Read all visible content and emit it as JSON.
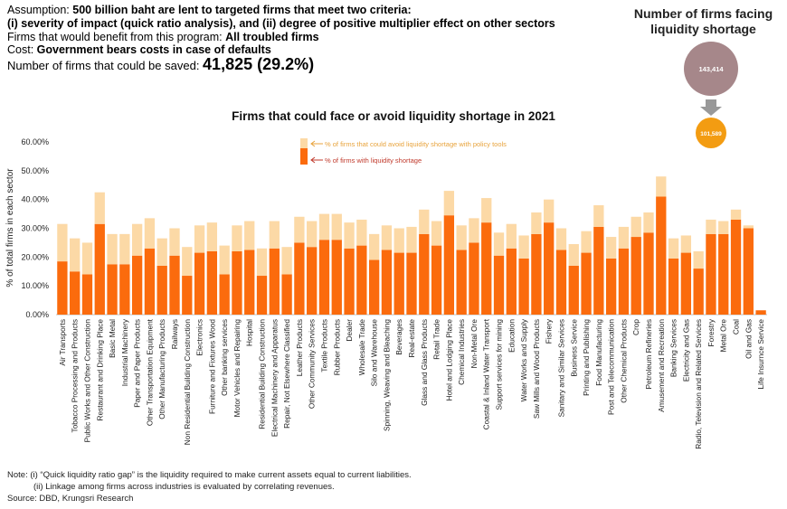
{
  "header": {
    "assumption_label": "Assumption: ",
    "assumption_text": "500 billion baht are lent to targeted firms that meet two criteria:",
    "criteria": "(i) severity of impact (quick ratio analysis), and (ii) degree of positive multiplier effect on other sectors",
    "benefit_label": "Firms that would benefit from this program: ",
    "benefit_value": "All troubled firms",
    "cost_label": "Cost: ",
    "cost_value": "Government bears costs in case of defaults",
    "saved_label": "Number of firms that could be saved: ",
    "saved_value": "41,825 (29.2%)"
  },
  "bubbles": {
    "title": "Number of firms facing liquidity shortage",
    "before_value": "143,414",
    "after_value": "101,589",
    "before_color": "#a6878a",
    "after_color": "#f39c12",
    "arrow_color": "#999999"
  },
  "notes": {
    "note1": "Note:  (i) “Quick liquidity ratio gap” is the liquidity required to make current assets equal to current liabilities.",
    "note2": "(ii) Linkage among firms across industries is evaluated by correlating revenues.",
    "source": "Source: DBD, Krungsri Research"
  },
  "chart_data": {
    "type": "bar",
    "title": "Firms that could face or avoid liquidity shortage in 2021",
    "ylabel": "% of total firms in each sector",
    "xlabel": "",
    "ylim": [
      0,
      60
    ],
    "yticks": [
      "0.00%",
      "10.00%",
      "20.00%",
      "30.00%",
      "40.00%",
      "50.00%",
      "60.00%"
    ],
    "legend_placement": "top-left",
    "colors": {
      "shortage": "#fb6b0d",
      "avoid": "#fcd9a6",
      "avoid_text": "#e8a33c",
      "shortage_text": "#c0392b"
    },
    "categories": [
      "Air Transports",
      "Tobacco Processing and Products",
      "Public Works and Other Construction",
      "Restaurant and Drinking Place",
      "Basic Metal",
      "Industrial Machinery",
      "Paper and Paper Products",
      "Other Transportation Equipment",
      "Other Manufacturing Products",
      "Railways",
      "Non Residential Building Construction",
      "Electronics",
      "Furniture and Fixtures Wood",
      "Other banking services",
      "Motor Vehicles and Repairing",
      "Hospital",
      "Residential Building Construction",
      "Electrical Machinery and Apparatus",
      "Repair, Not Elsewhere Classified",
      "Leather Products",
      "Other Community Services",
      "Textile Products",
      "Rubber Products",
      "Dealer",
      "Wholesale Trade",
      "Silo and Warehouse",
      "Spinning, Weaving and Bleaching",
      "Beverages",
      "Real-estate",
      "Glass and Glass Products",
      "Retail Trade",
      "Hotel and Lodging Place",
      "Chemical Industries",
      "Non-Metal Ore",
      "Coastal & Inland Water Transport",
      "Support services for mining",
      "Education",
      "Water Works and Supply",
      "Saw Mills and Wood Products",
      "Fishery",
      "Sanitary and Similar Services",
      "Business Service",
      "Printing and Publishing",
      "Food Manufacturing",
      "Post and Telecommunication",
      "Other Chemical Products",
      "Crop",
      "Petroleum Refineries",
      "Amusement and Recreation",
      "Banking Services",
      "Electricity and Gas",
      "Radio, Television and Related Services",
      "Forestry",
      "Metal Ore",
      "Coal",
      "Oil and Gas",
      "Life Insurnce Service"
    ],
    "series": [
      {
        "name": "% of firms with liquidity shortage",
        "values": [
          18.5,
          15.0,
          14.0,
          31.5,
          17.5,
          17.5,
          20.5,
          23.0,
          17.0,
          20.5,
          13.5,
          21.5,
          22.0,
          14.0,
          22.0,
          22.5,
          13.5,
          23.0,
          14.0,
          25.0,
          23.5,
          26.0,
          26.0,
          23.0,
          24.0,
          19.0,
          22.5,
          21.5,
          21.5,
          28.0,
          24.0,
          34.5,
          22.5,
          25.0,
          32.0,
          20.5,
          23.0,
          19.5,
          28.0,
          32.0,
          22.5,
          17.0,
          21.5,
          30.5,
          19.5,
          23.0,
          27.0,
          28.5,
          41.0,
          19.5,
          21.5,
          16.0,
          28.0,
          28.0,
          33.0,
          30.0,
          1.5
        ]
      },
      {
        "name": "% of firms that could avoid liquidity shortage with policy tools",
        "values": [
          13.0,
          11.5,
          11.0,
          11.0,
          10.5,
          10.5,
          11.0,
          10.5,
          9.5,
          9.5,
          10.0,
          9.5,
          10.0,
          10.0,
          9.0,
          10.0,
          9.5,
          9.5,
          9.5,
          9.0,
          9.0,
          9.0,
          9.0,
          9.0,
          9.0,
          9.0,
          8.5,
          8.5,
          9.0,
          8.5,
          8.5,
          8.5,
          8.5,
          8.5,
          8.5,
          8.0,
          8.5,
          8.0,
          7.5,
          8.0,
          7.5,
          7.5,
          7.5,
          7.5,
          7.5,
          7.5,
          7.0,
          7.0,
          7.0,
          7.0,
          6.0,
          6.0,
          5.0,
          4.5,
          3.5,
          1.0,
          0.0
        ]
      }
    ]
  }
}
